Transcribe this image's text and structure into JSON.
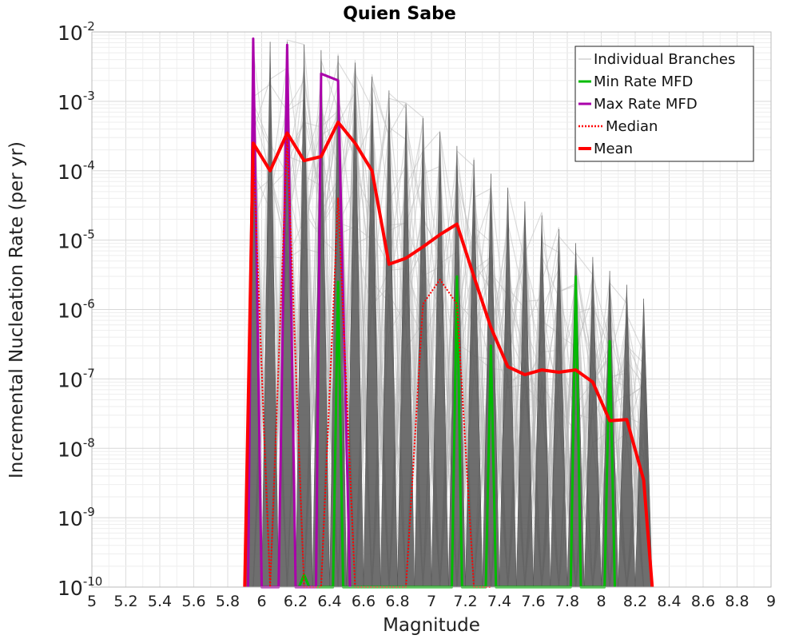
{
  "chart_data": {
    "type": "line",
    "title": "Quien Sabe",
    "xlabel": "Magnitude",
    "ylabel": "Incremental Nucleation Rate (per yr)",
    "xlim": [
      5,
      9
    ],
    "ylim": [
      1e-10,
      0.01
    ],
    "yscale": "log",
    "grid": true,
    "legend_position": "top-right",
    "x_ticks": [
      "5",
      "5.2",
      "5.4",
      "5.6",
      "5.8",
      "6",
      "6.2",
      "6.4",
      "6.6",
      "6.8",
      "7",
      "7.2",
      "7.4",
      "7.6",
      "7.8",
      "8",
      "8.2",
      "8.4",
      "8.6",
      "8.8",
      "9"
    ],
    "y_ticks": [
      {
        "base": "10",
        "exp": "-10"
      },
      {
        "base": "10",
        "exp": "-9"
      },
      {
        "base": "10",
        "exp": "-8"
      },
      {
        "base": "10",
        "exp": "-7"
      },
      {
        "base": "10",
        "exp": "-6"
      },
      {
        "base": "10",
        "exp": "-5"
      },
      {
        "base": "10",
        "exp": "-4"
      },
      {
        "base": "10",
        "exp": "-3"
      },
      {
        "base": "10",
        "exp": "-2"
      }
    ],
    "legend": [
      {
        "label": "Individual Branches",
        "color": "#bbbbbb",
        "style": "solid-thin"
      },
      {
        "label": "Min Rate MFD",
        "color": "#00bb00",
        "style": "solid"
      },
      {
        "label": "Max Rate MFD",
        "color": "#aa00aa",
        "style": "solid"
      },
      {
        "label": "Median",
        "color": "#ff0000",
        "style": "dotted"
      },
      {
        "label": "Mean",
        "color": "#ff0000",
        "style": "solid-thick"
      }
    ],
    "series": [
      {
        "name": "Mean",
        "color": "#ff0000",
        "x": [
          5.9,
          5.95,
          6.05,
          6.15,
          6.25,
          6.35,
          6.45,
          6.55,
          6.65,
          6.75,
          6.85,
          6.95,
          7.05,
          7.15,
          7.25,
          7.35,
          7.45,
          7.55,
          7.65,
          7.75,
          7.85,
          7.95,
          8.05,
          8.15,
          8.25,
          8.3
        ],
        "y": [
          1e-10,
          0.00025,
          0.0001,
          0.00035,
          0.00014,
          0.00016,
          0.0005,
          0.00025,
          0.0001,
          4.5e-06,
          5.5e-06,
          8e-06,
          1.2e-05,
          1.7e-05,
          3e-06,
          5.5e-07,
          1.5e-07,
          1.15e-07,
          1.35e-07,
          1.25e-07,
          1.35e-07,
          9e-08,
          2.5e-08,
          2.6e-08,
          3.5e-09,
          1e-10
        ]
      },
      {
        "name": "Median",
        "color": "#ff0000",
        "x": [
          5.9,
          5.95,
          6.05,
          6.15,
          6.25,
          6.35,
          6.45,
          6.55,
          6.65,
          6.75,
          6.85,
          6.95,
          7.05,
          7.15,
          7.25,
          7.35
        ],
        "y": [
          1e-10,
          0.0002,
          1e-10,
          0.0003,
          1e-10,
          1e-10,
          4e-05,
          1e-10,
          1e-10,
          1e-10,
          1e-10,
          1.2e-06,
          2.7e-06,
          1.2e-06,
          1e-10,
          1e-10
        ]
      },
      {
        "name": "Min Rate MFD",
        "color": "#00bb00",
        "x": [
          6.22,
          6.25,
          6.28,
          6.42,
          6.45,
          6.48,
          7.12,
          7.15,
          7.18,
          7.32,
          7.35,
          7.38,
          7.82,
          7.85,
          7.88,
          8.02,
          8.05,
          8.08
        ],
        "y": [
          1e-10,
          1.5e-10,
          1e-10,
          1e-10,
          2.5e-06,
          1e-10,
          1e-10,
          3e-06,
          1e-10,
          1e-10,
          3e-07,
          1e-10,
          1e-10,
          3e-06,
          1e-10,
          1e-10,
          3.5e-07,
          1e-10
        ]
      },
      {
        "name": "Max Rate MFD",
        "color": "#aa00aa",
        "x": [
          5.92,
          5.95,
          6.0,
          6.1,
          6.15,
          6.2,
          6.32,
          6.35,
          6.45,
          6.52
        ],
        "y": [
          1e-10,
          0.008,
          1e-10,
          1e-10,
          0.0065,
          1e-10,
          1e-10,
          0.0025,
          0.002,
          1e-10
        ]
      }
    ]
  }
}
